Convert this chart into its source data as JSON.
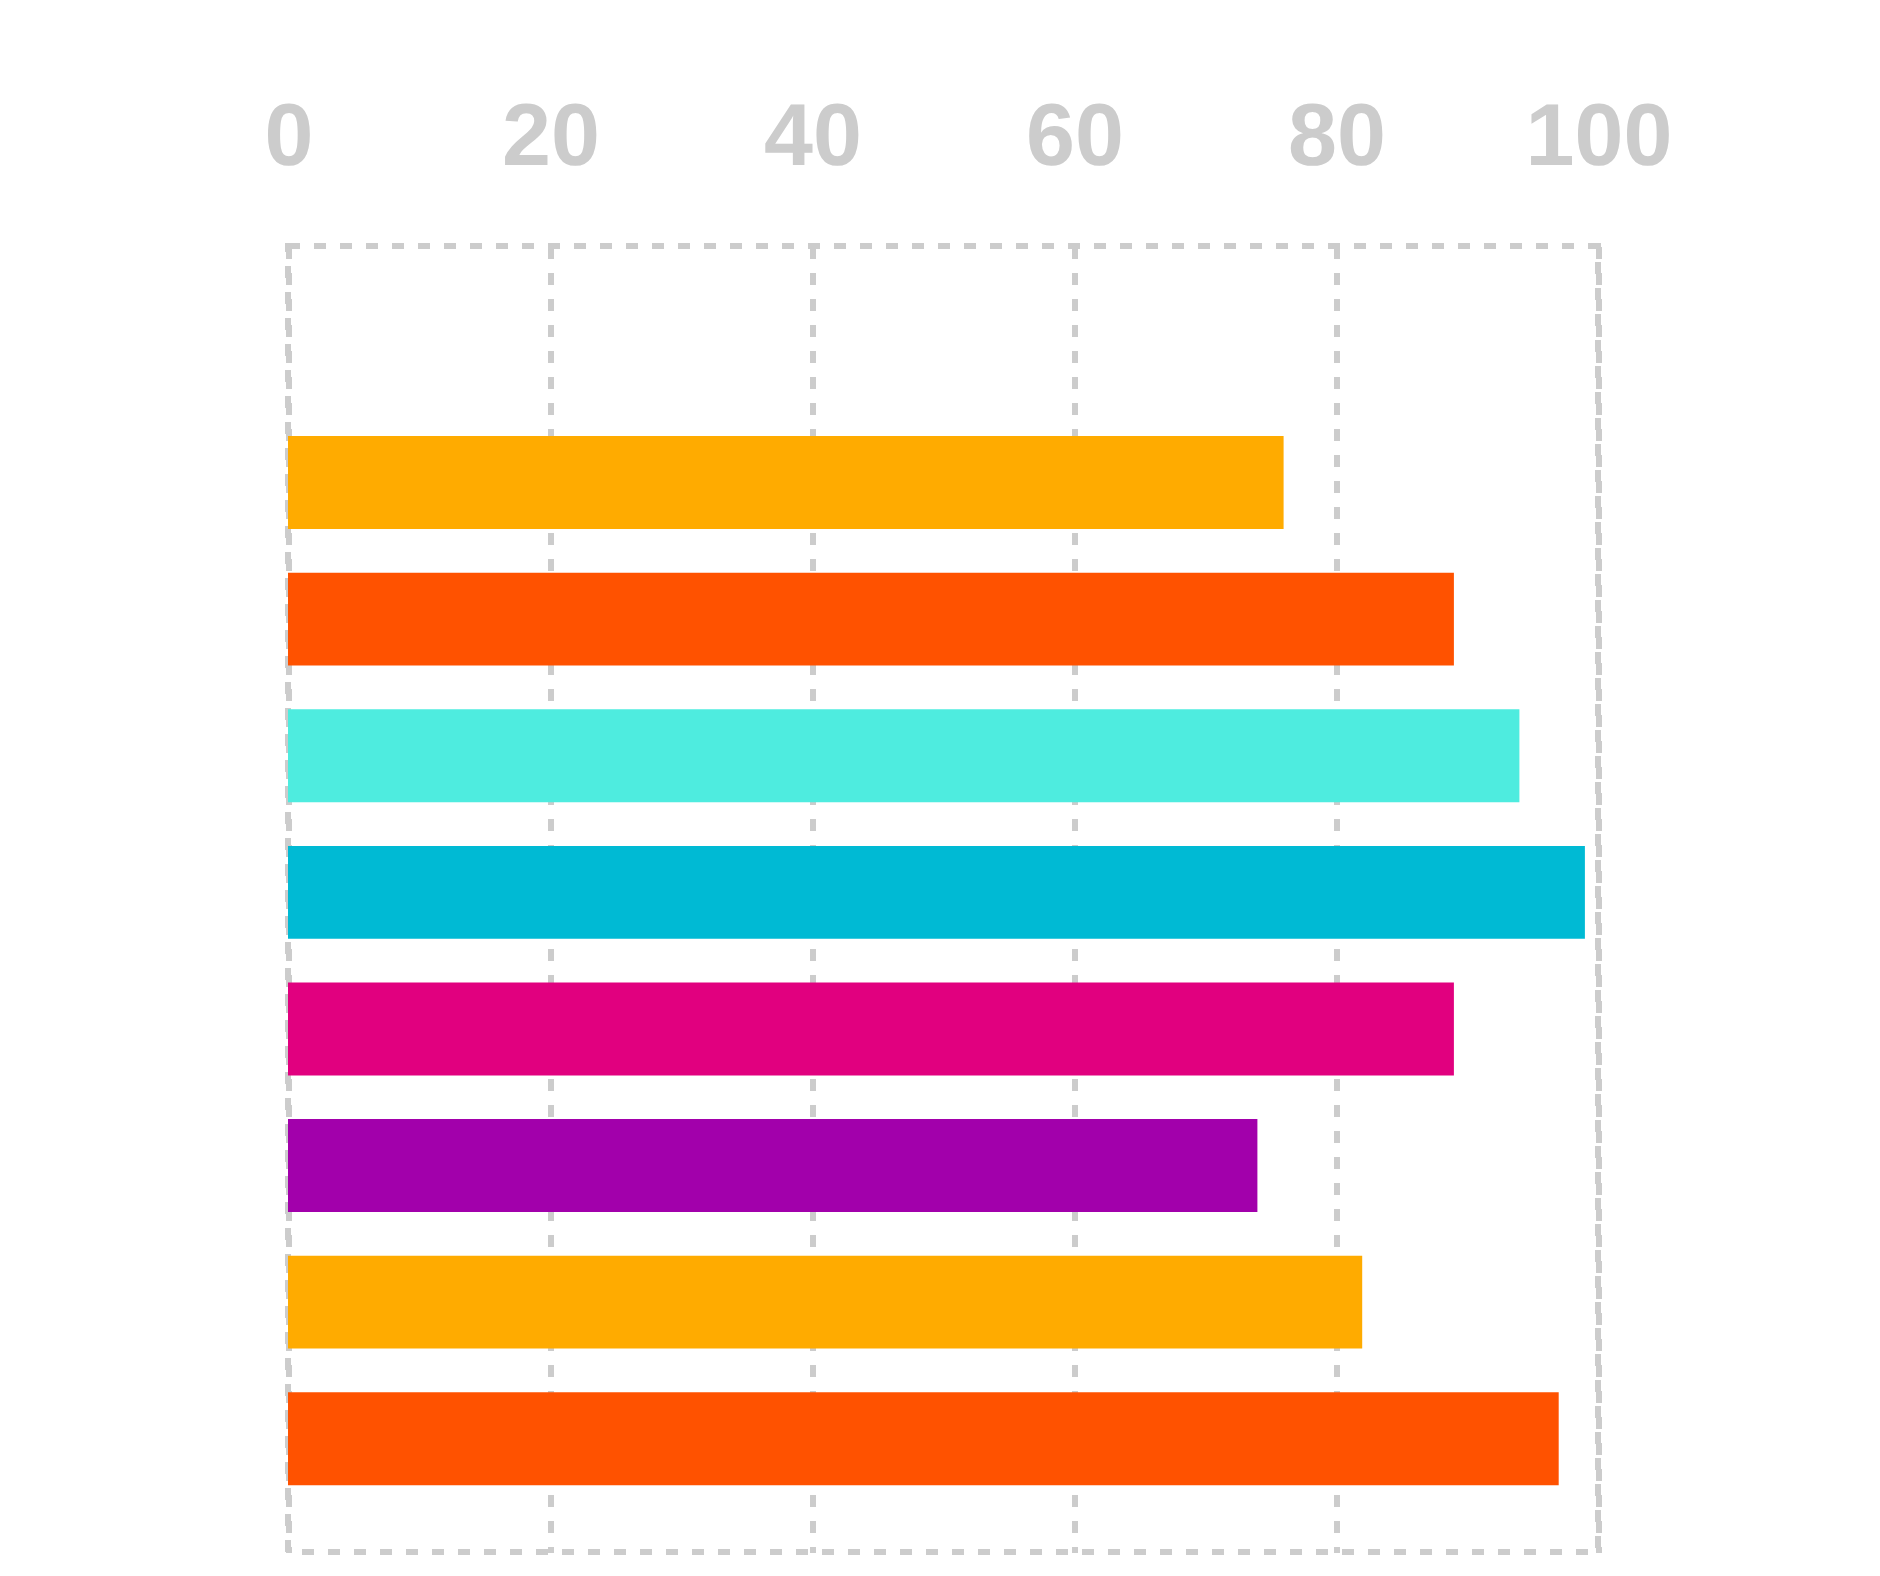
{
  "chart_data": {
    "type": "bar",
    "orientation": "horizontal",
    "categories": [
      null,
      null,
      null,
      null,
      null,
      null,
      null,
      null
    ],
    "values": [
      76,
      89,
      94,
      99,
      89,
      74,
      82,
      97
    ],
    "colors": [
      "#ffab00",
      "#ff5200",
      "#4eecdf",
      "#00bad4",
      "#e1007f",
      "#a200ab",
      "#ffab00",
      "#ff5200"
    ],
    "xlim": [
      0,
      100
    ],
    "xticks": [
      0,
      20,
      40,
      60,
      80,
      100
    ],
    "grid": "x",
    "tick_labels": "x"
  }
}
